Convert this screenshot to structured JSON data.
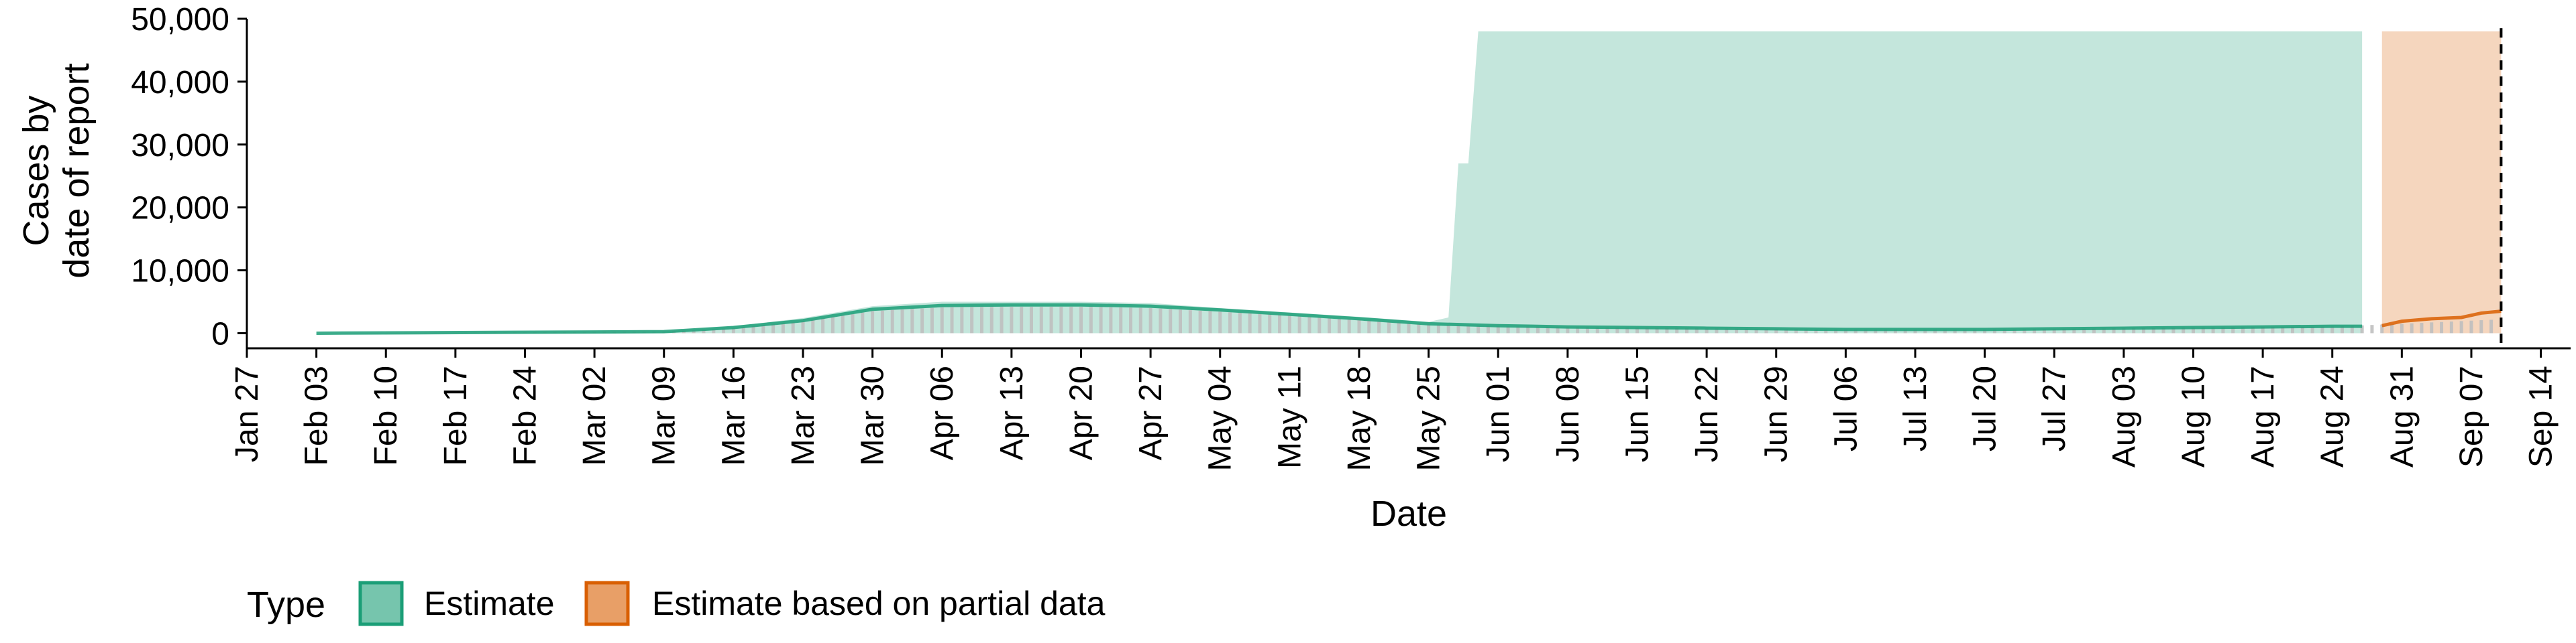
{
  "chart_data": {
    "type": "area",
    "title": "",
    "ylabel": [
      "Cases by",
      "date of report"
    ],
    "xlabel": "Date",
    "x_start": "2020-01-27",
    "x_end": "2020-09-17",
    "ylim": [
      -2400,
      50000
    ],
    "y_ticks": [
      0,
      10000,
      20000,
      30000,
      40000,
      50000
    ],
    "y_tick_labels": [
      "0",
      "10,000",
      "20,000",
      "30,000",
      "40,000",
      "50,000"
    ],
    "x_tick_dates": [
      "2020-01-27",
      "2020-02-03",
      "2020-02-10",
      "2020-02-17",
      "2020-02-24",
      "2020-03-02",
      "2020-03-09",
      "2020-03-16",
      "2020-03-23",
      "2020-03-30",
      "2020-04-06",
      "2020-04-13",
      "2020-04-20",
      "2020-04-27",
      "2020-05-04",
      "2020-05-11",
      "2020-05-18",
      "2020-05-25",
      "2020-06-01",
      "2020-06-08",
      "2020-06-15",
      "2020-06-22",
      "2020-06-29",
      "2020-07-06",
      "2020-07-13",
      "2020-07-20",
      "2020-07-27",
      "2020-08-03",
      "2020-08-10",
      "2020-08-17",
      "2020-08-24",
      "2020-08-31",
      "2020-09-07",
      "2020-09-14"
    ],
    "x_tick_labels": [
      "Jan 27",
      "Feb 03",
      "Feb 10",
      "Feb 17",
      "Feb 24",
      "Mar 02",
      "Mar 09",
      "Mar 16",
      "Mar 23",
      "Mar 30",
      "Apr 06",
      "Apr 13",
      "Apr 20",
      "Apr 27",
      "May 04",
      "May 11",
      "May 18",
      "May 25",
      "Jun 01",
      "Jun 08",
      "Jun 15",
      "Jun 22",
      "Jun 29",
      "Jul 06",
      "Jul 13",
      "Jul 20",
      "Jul 27",
      "Aug 03",
      "Aug 10",
      "Aug 17",
      "Aug 24",
      "Aug 31",
      "Sep 07",
      "Sep 14"
    ],
    "vline_date": "2020-09-10",
    "legend": {
      "title": "Type",
      "position": "bottom-left",
      "entries": [
        {
          "label": "Estimate",
          "color": "#1b9e77"
        },
        {
          "label": "Estimate based on partial data",
          "color": "#d95f02"
        }
      ]
    },
    "series": [
      {
        "name": "Estimate",
        "color": "#1b9e77",
        "upper_band": [
          [
            "2020-02-03",
            0
          ],
          [
            "2020-03-09",
            300
          ],
          [
            "2020-03-16",
            1100
          ],
          [
            "2020-03-23",
            2400
          ],
          [
            "2020-03-30",
            4300
          ],
          [
            "2020-04-06",
            5000
          ],
          [
            "2020-04-13",
            5000
          ],
          [
            "2020-04-20",
            5000
          ],
          [
            "2020-04-27",
            4800
          ],
          [
            "2020-05-04",
            4000
          ],
          [
            "2020-05-11",
            3300
          ],
          [
            "2020-05-18",
            2600
          ],
          [
            "2020-05-25",
            1800
          ],
          [
            "2020-05-27",
            2500
          ],
          [
            "2020-05-28",
            27000
          ],
          [
            "2020-05-29",
            27000
          ],
          [
            "2020-05-30",
            48000
          ],
          [
            "2020-08-27",
            48000
          ]
        ],
        "median": [
          [
            "2020-02-03",
            0
          ],
          [
            "2020-03-09",
            250
          ],
          [
            "2020-03-16",
            900
          ],
          [
            "2020-03-23",
            2000
          ],
          [
            "2020-03-30",
            3800
          ],
          [
            "2020-04-06",
            4400
          ],
          [
            "2020-04-13",
            4500
          ],
          [
            "2020-04-20",
            4500
          ],
          [
            "2020-04-27",
            4300
          ],
          [
            "2020-05-04",
            3700
          ],
          [
            "2020-05-11",
            3000
          ],
          [
            "2020-05-18",
            2300
          ],
          [
            "2020-05-25",
            1500
          ],
          [
            "2020-06-01",
            1200
          ],
          [
            "2020-06-08",
            1000
          ],
          [
            "2020-06-15",
            900
          ],
          [
            "2020-06-22",
            800
          ],
          [
            "2020-06-29",
            700
          ],
          [
            "2020-07-06",
            600
          ],
          [
            "2020-07-13",
            600
          ],
          [
            "2020-07-20",
            600
          ],
          [
            "2020-07-27",
            700
          ],
          [
            "2020-08-03",
            800
          ],
          [
            "2020-08-10",
            900
          ],
          [
            "2020-08-17",
            1000
          ],
          [
            "2020-08-24",
            1100
          ],
          [
            "2020-08-27",
            1100
          ]
        ]
      },
      {
        "name": "Estimate based on partial data",
        "color": "#d95f02",
        "upper_band": [
          [
            "2020-08-29",
            48000
          ],
          [
            "2020-09-10",
            48000
          ]
        ],
        "median": [
          [
            "2020-08-29",
            1200
          ],
          [
            "2020-08-31",
            1900
          ],
          [
            "2020-09-03",
            2300
          ],
          [
            "2020-09-06",
            2500
          ],
          [
            "2020-09-08",
            3200
          ],
          [
            "2020-09-10",
            3500
          ]
        ]
      }
    ],
    "reported_cases": {
      "color": "#bfbfbf",
      "points": [
        [
          "2020-02-03",
          0
        ],
        [
          "2020-03-09",
          250
        ],
        [
          "2020-03-16",
          800
        ],
        [
          "2020-03-23",
          1900
        ],
        [
          "2020-03-30",
          3500
        ],
        [
          "2020-04-06",
          4100
        ],
        [
          "2020-04-13",
          4200
        ],
        [
          "2020-04-20",
          4200
        ],
        [
          "2020-04-27",
          4000
        ],
        [
          "2020-05-04",
          3400
        ],
        [
          "2020-05-11",
          2800
        ],
        [
          "2020-05-18",
          2100
        ],
        [
          "2020-05-25",
          1400
        ],
        [
          "2020-06-01",
          1100
        ],
        [
          "2020-06-08",
          950
        ],
        [
          "2020-06-15",
          850
        ],
        [
          "2020-06-22",
          750
        ],
        [
          "2020-06-29",
          650
        ],
        [
          "2020-07-06",
          580
        ],
        [
          "2020-07-13",
          580
        ],
        [
          "2020-07-20",
          600
        ],
        [
          "2020-07-27",
          680
        ],
        [
          "2020-08-03",
          780
        ],
        [
          "2020-08-10",
          880
        ],
        [
          "2020-08-17",
          980
        ],
        [
          "2020-08-24",
          1050
        ],
        [
          "2020-08-31",
          1500
        ],
        [
          "2020-09-07",
          2000
        ],
        [
          "2020-09-10",
          2200
        ]
      ]
    }
  }
}
